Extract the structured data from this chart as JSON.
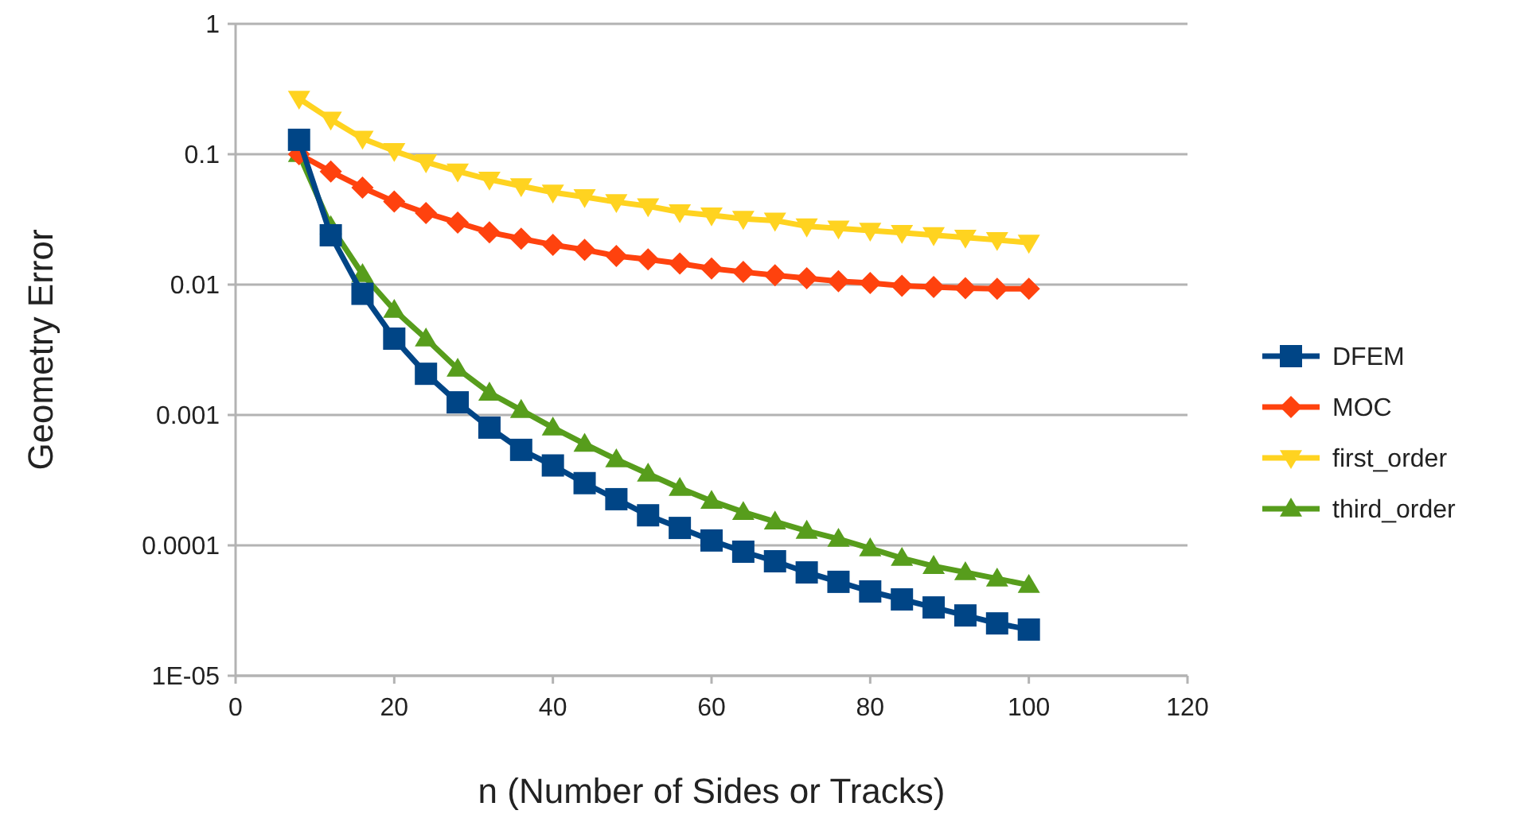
{
  "chart_data": {
    "type": "line",
    "xlabel": "n (Number of Sides or Tracks)",
    "ylabel": "Geometry Error",
    "log": "y",
    "grid": "y",
    "legend": "right",
    "line_style": "solid",
    "xlim": [
      0,
      120
    ],
    "xticks": [
      0,
      20,
      40,
      60,
      80,
      100,
      120
    ],
    "ylim": [
      1e-05,
      1
    ],
    "yticks": [
      {
        "value": 1e-05,
        "label": "1E-05"
      },
      0.0001,
      0.001,
      0.01,
      0.1,
      1
    ],
    "x": [
      8,
      12,
      16,
      20,
      24,
      28,
      32,
      36,
      40,
      44,
      48,
      52,
      56,
      60,
      64,
      68,
      72,
      76,
      80,
      84,
      88,
      92,
      96,
      100
    ],
    "series": [
      {
        "name": "DFEM",
        "color": "#004586",
        "marker": "square",
        "values": [
          0.129,
          0.0239,
          0.0085,
          0.00385,
          0.00207,
          0.00125,
          0.0008,
          0.00054,
          0.00041,
          0.0003,
          0.000226,
          0.00017,
          0.000136,
          0.000109,
          8.94e-05,
          7.55e-05,
          6.2e-05,
          5.25e-05,
          4.43e-05,
          3.85e-05,
          3.34e-05,
          2.9e-05,
          2.52e-05,
          2.26e-05
        ]
      },
      {
        "name": "MOC",
        "color": "#ff420e",
        "marker": "diamond",
        "values": [
          0.1,
          0.0736,
          0.0555,
          0.0433,
          0.0354,
          0.0299,
          0.0252,
          0.0225,
          0.0202,
          0.0185,
          0.0166,
          0.0156,
          0.0145,
          0.0133,
          0.0125,
          0.0118,
          0.0112,
          0.0106,
          0.0103,
          0.0098,
          0.0096,
          0.0094,
          0.0093,
          0.0093
        ]
      },
      {
        "name": "first_order",
        "color": "#ffd320",
        "marker": "triangle-down",
        "values": [
          0.267,
          0.185,
          0.132,
          0.106,
          0.087,
          0.074,
          0.064,
          0.057,
          0.051,
          0.047,
          0.043,
          0.04,
          0.036,
          0.034,
          0.032,
          0.031,
          0.028,
          0.027,
          0.026,
          0.025,
          0.024,
          0.023,
          0.022,
          0.021
        ]
      },
      {
        "name": "third_order",
        "color": "#579d1c",
        "marker": "triangle",
        "values": [
          0.1,
          0.028,
          0.012,
          0.00638,
          0.00385,
          0.00226,
          0.00148,
          0.00109,
          0.0008,
          0.0006,
          0.000456,
          0.000354,
          0.000275,
          0.000219,
          0.00018,
          0.000152,
          0.000129,
          0.000112,
          9.46e-05,
          7.98e-05,
          6.93e-05,
          6.21e-05,
          5.55e-05,
          4.96e-05
        ]
      }
    ]
  }
}
